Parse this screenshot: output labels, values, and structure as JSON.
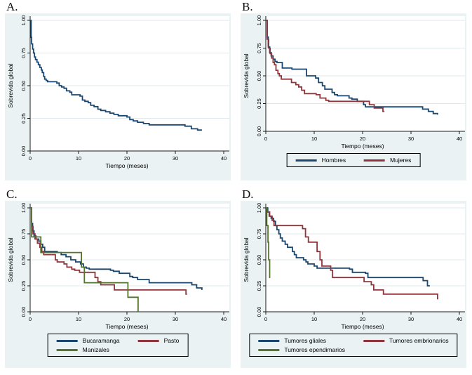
{
  "figure": {
    "panel_bg": "#eaf2f3",
    "plot_bg": "#ffffff",
    "grid_color": "#dfeaed",
    "axis_color": "#1a1a1a",
    "legend_border": "#000000"
  },
  "chart_data": [
    {
      "panel": "A.",
      "type": "line",
      "subtype": "kaplan-meier-step",
      "xlabel": "Tiempo (meses)",
      "ylabel": "Sobrevida global",
      "xlim": [
        0,
        40
      ],
      "ylim": [
        0,
        1
      ],
      "xticks": [
        "0",
        "10",
        "20",
        "30",
        "40"
      ],
      "yticks": [
        "0.00",
        "0.25",
        "0.50",
        "0.75",
        "1.00"
      ],
      "grid": "horizontal",
      "legend": null,
      "series": [
        {
          "name": "Sobrevida global",
          "color": "#1a476f",
          "points": [
            [
              0,
              1.0
            ],
            [
              0.2,
              0.87
            ],
            [
              0.3,
              0.82
            ],
            [
              0.5,
              0.78
            ],
            [
              0.7,
              0.75
            ],
            [
              0.9,
              0.72
            ],
            [
              1.1,
              0.7
            ],
            [
              1.4,
              0.68
            ],
            [
              1.7,
              0.66
            ],
            [
              2.0,
              0.64
            ],
            [
              2.3,
              0.62
            ],
            [
              2.5,
              0.6
            ],
            [
              2.8,
              0.57
            ],
            [
              3.0,
              0.55
            ],
            [
              3.3,
              0.54
            ],
            [
              3.6,
              0.53
            ],
            [
              5.5,
              0.52
            ],
            [
              6.0,
              0.5
            ],
            [
              6.5,
              0.49
            ],
            [
              7.0,
              0.48
            ],
            [
              7.5,
              0.46
            ],
            [
              8.2,
              0.45
            ],
            [
              8.6,
              0.43
            ],
            [
              10.3,
              0.42
            ],
            [
              10.8,
              0.39
            ],
            [
              11.3,
              0.38
            ],
            [
              12.0,
              0.37
            ],
            [
              12.5,
              0.35
            ],
            [
              13.2,
              0.34
            ],
            [
              14.0,
              0.32
            ],
            [
              14.6,
              0.31
            ],
            [
              15.6,
              0.3
            ],
            [
              16.5,
              0.29
            ],
            [
              17.3,
              0.28
            ],
            [
              18.2,
              0.27
            ],
            [
              20.0,
              0.26
            ],
            [
              20.6,
              0.24
            ],
            [
              21.3,
              0.23
            ],
            [
              22.2,
              0.22
            ],
            [
              23.4,
              0.21
            ],
            [
              24.6,
              0.2
            ],
            [
              32.0,
              0.19
            ],
            [
              33.3,
              0.17
            ],
            [
              34.6,
              0.16
            ],
            [
              35.5,
              0.16
            ]
          ]
        }
      ]
    },
    {
      "panel": "B.",
      "type": "line",
      "subtype": "kaplan-meier-step",
      "xlabel": "Tiempo (meses)",
      "ylabel": "Sobrevida global",
      "xlim": [
        0,
        40
      ],
      "ylim": [
        0,
        1
      ],
      "xticks": [
        "0",
        "10",
        "20",
        "30",
        "40"
      ],
      "yticks": [
        "0.00",
        "0.25",
        "0.50",
        "0.75",
        "1.00"
      ],
      "grid": "horizontal",
      "legend": {
        "columns": 2,
        "entries": [
          "Hombres",
          "Mujeres"
        ]
      },
      "series": [
        {
          "name": "Hombres",
          "color": "#1a476f",
          "points": [
            [
              0,
              1.0
            ],
            [
              0.3,
              0.85
            ],
            [
              0.5,
              0.76
            ],
            [
              0.8,
              0.71
            ],
            [
              1.1,
              0.68
            ],
            [
              1.5,
              0.65
            ],
            [
              1.9,
              0.63
            ],
            [
              2.3,
              0.62
            ],
            [
              3.4,
              0.57
            ],
            [
              5.4,
              0.56
            ],
            [
              8.4,
              0.5
            ],
            [
              10.3,
              0.48
            ],
            [
              10.9,
              0.44
            ],
            [
              11.7,
              0.41
            ],
            [
              12.2,
              0.38
            ],
            [
              13.7,
              0.35
            ],
            [
              14.2,
              0.33
            ],
            [
              14.8,
              0.32
            ],
            [
              17.2,
              0.3
            ],
            [
              17.8,
              0.29
            ],
            [
              18.9,
              0.27
            ],
            [
              20.2,
              0.24
            ],
            [
              20.6,
              0.22
            ],
            [
              32.4,
              0.2
            ],
            [
              33.6,
              0.18
            ],
            [
              34.6,
              0.16
            ],
            [
              35.5,
              0.15
            ]
          ]
        },
        {
          "name": "Mujeres",
          "color": "#90353b",
          "points": [
            [
              0,
              1.0
            ],
            [
              0.3,
              0.83
            ],
            [
              0.6,
              0.75
            ],
            [
              0.9,
              0.7
            ],
            [
              1.2,
              0.66
            ],
            [
              1.5,
              0.62
            ],
            [
              1.8,
              0.6
            ],
            [
              2.1,
              0.55
            ],
            [
              2.5,
              0.52
            ],
            [
              2.8,
              0.5
            ],
            [
              3.2,
              0.47
            ],
            [
              5.3,
              0.44
            ],
            [
              6.2,
              0.42
            ],
            [
              6.8,
              0.4
            ],
            [
              7.4,
              0.37
            ],
            [
              8.0,
              0.34
            ],
            [
              10.4,
              0.33
            ],
            [
              11.2,
              0.3
            ],
            [
              12.4,
              0.28
            ],
            [
              13.0,
              0.27
            ],
            [
              21.4,
              0.24
            ],
            [
              22.4,
              0.21
            ],
            [
              24.2,
              0.18
            ],
            [
              24.5,
              0.18
            ]
          ]
        }
      ]
    },
    {
      "panel": "C.",
      "type": "line",
      "subtype": "kaplan-meier-step",
      "xlabel": "Tiempo (meses)",
      "ylabel": "Sobrevida global",
      "xlim": [
        0,
        40
      ],
      "ylim": [
        0,
        1
      ],
      "xticks": [
        "0",
        "10",
        "20",
        "30",
        "40"
      ],
      "yticks": [
        "0.00",
        "0.25",
        "0.50",
        "0.75",
        "1.00"
      ],
      "grid": "horizontal",
      "legend": {
        "columns": 2,
        "entries": [
          "Bucaramanga",
          "Pasto",
          "Manizales"
        ]
      },
      "series": [
        {
          "name": "Bucaramanga",
          "color": "#1a476f",
          "points": [
            [
              0,
              1.0
            ],
            [
              0.3,
              0.85
            ],
            [
              0.5,
              0.78
            ],
            [
              0.8,
              0.73
            ],
            [
              1.2,
              0.7
            ],
            [
              1.8,
              0.68
            ],
            [
              2.2,
              0.65
            ],
            [
              2.6,
              0.62
            ],
            [
              3.0,
              0.58
            ],
            [
              5.6,
              0.57
            ],
            [
              6.4,
              0.55
            ],
            [
              7.4,
              0.53
            ],
            [
              8.4,
              0.5
            ],
            [
              9.4,
              0.48
            ],
            [
              10.4,
              0.46
            ],
            [
              11.0,
              0.43
            ],
            [
              11.6,
              0.42
            ],
            [
              12.2,
              0.41
            ],
            [
              16.6,
              0.4
            ],
            [
              17.2,
              0.39
            ],
            [
              18.4,
              0.37
            ],
            [
              20.6,
              0.34
            ],
            [
              21.2,
              0.33
            ],
            [
              22.2,
              0.31
            ],
            [
              24.6,
              0.28
            ],
            [
              33.4,
              0.26
            ],
            [
              34.4,
              0.23
            ],
            [
              35.5,
              0.21
            ]
          ]
        },
        {
          "name": "Pasto",
          "color": "#90353b",
          "points": [
            [
              0,
              1.0
            ],
            [
              0.3,
              0.82
            ],
            [
              0.6,
              0.75
            ],
            [
              1.0,
              0.7
            ],
            [
              1.5,
              0.66
            ],
            [
              2.0,
              0.62
            ],
            [
              2.4,
              0.58
            ],
            [
              2.8,
              0.55
            ],
            [
              5.2,
              0.5
            ],
            [
              5.6,
              0.48
            ],
            [
              7.0,
              0.46
            ],
            [
              7.6,
              0.43
            ],
            [
              8.6,
              0.41
            ],
            [
              9.2,
              0.4
            ],
            [
              10.2,
              0.38
            ],
            [
              13.4,
              0.33
            ],
            [
              14.0,
              0.29
            ],
            [
              14.6,
              0.26
            ],
            [
              17.4,
              0.21
            ],
            [
              32.2,
              0.17
            ],
            [
              32.4,
              0.17
            ]
          ]
        },
        {
          "name": "Manizales",
          "color": "#55752f",
          "points": [
            [
              0,
              1.0
            ],
            [
              0.3,
              0.72
            ],
            [
              2.2,
              0.57
            ],
            [
              10.6,
              0.43
            ],
            [
              11.2,
              0.28
            ],
            [
              20.2,
              0.14
            ],
            [
              22.3,
              0.0
            ]
          ]
        }
      ]
    },
    {
      "panel": "D.",
      "type": "line",
      "subtype": "kaplan-meier-step",
      "xlabel": "Tiempo (meses)",
      "ylabel": "Sobrevida global",
      "xlim": [
        0,
        40
      ],
      "ylim": [
        0,
        1
      ],
      "xticks": [
        "0",
        "10",
        "20",
        "30",
        "40"
      ],
      "yticks": [
        "0.00",
        "0.25",
        "0.50",
        "0.75",
        "1.00"
      ],
      "grid": "horizontal",
      "legend": {
        "columns": 2,
        "entries": [
          "Tumores gliales",
          "Tumores embrionarios",
          "Tumores ependimarios"
        ]
      },
      "series": [
        {
          "name": "Tumores gliales",
          "color": "#1a476f",
          "points": [
            [
              0,
              1.0
            ],
            [
              0.4,
              0.96
            ],
            [
              0.7,
              0.92
            ],
            [
              1.1,
              0.9
            ],
            [
              1.6,
              0.87
            ],
            [
              2.0,
              0.83
            ],
            [
              2.3,
              0.79
            ],
            [
              2.7,
              0.75
            ],
            [
              3.0,
              0.71
            ],
            [
              3.4,
              0.68
            ],
            [
              4.0,
              0.65
            ],
            [
              4.5,
              0.62
            ],
            [
              5.5,
              0.58
            ],
            [
              5.9,
              0.55
            ],
            [
              6.3,
              0.52
            ],
            [
              7.8,
              0.5
            ],
            [
              8.3,
              0.48
            ],
            [
              8.7,
              0.46
            ],
            [
              10.0,
              0.44
            ],
            [
              10.6,
              0.42
            ],
            [
              17.3,
              0.41
            ],
            [
              17.9,
              0.38
            ],
            [
              20.6,
              0.37
            ],
            [
              21.1,
              0.33
            ],
            [
              32.5,
              0.3
            ],
            [
              33.4,
              0.25
            ],
            [
              33.9,
              0.25
            ]
          ]
        },
        {
          "name": "Tumores embrionarios",
          "color": "#90353b",
          "points": [
            [
              0,
              1.0
            ],
            [
              0.3,
              0.96
            ],
            [
              0.8,
              0.92
            ],
            [
              1.3,
              0.88
            ],
            [
              1.7,
              0.83
            ],
            [
              7.6,
              0.8
            ],
            [
              8.2,
              0.72
            ],
            [
              8.8,
              0.67
            ],
            [
              10.6,
              0.58
            ],
            [
              11.2,
              0.5
            ],
            [
              11.6,
              0.44
            ],
            [
              13.4,
              0.4
            ],
            [
              13.8,
              0.33
            ],
            [
              20.3,
              0.29
            ],
            [
              21.8,
              0.26
            ],
            [
              22.3,
              0.21
            ],
            [
              24.3,
              0.17
            ],
            [
              35.5,
              0.12
            ]
          ]
        },
        {
          "name": "Tumores ependimarios",
          "color": "#55752f",
          "points": [
            [
              0,
              1.0
            ],
            [
              0.2,
              0.83
            ],
            [
              0.45,
              0.67
            ],
            [
              0.6,
              0.5
            ],
            [
              0.8,
              0.33
            ],
            [
              0.9,
              0.33
            ]
          ]
        }
      ]
    }
  ]
}
